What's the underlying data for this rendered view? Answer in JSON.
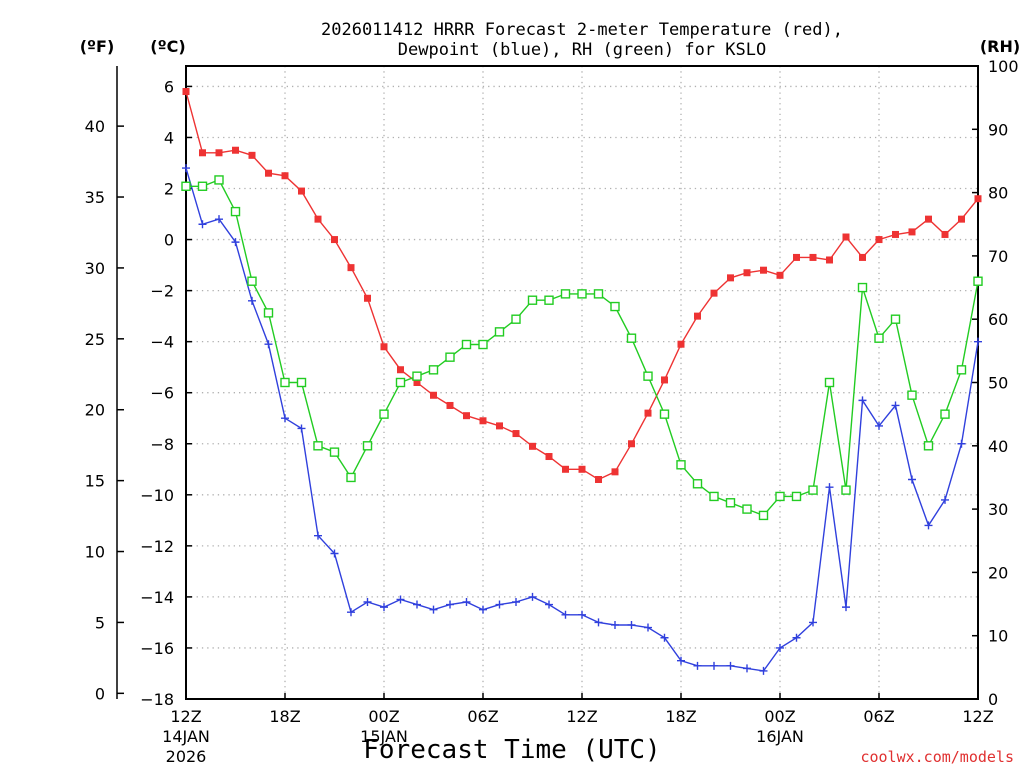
{
  "title_line1": "2026011412 HRRR Forecast 2-meter Temperature (red),",
  "title_line2": "Dewpoint (blue), RH (green) for KSLO",
  "unit_f": "(ºF)",
  "unit_c": "(ºC)",
  "unit_rh": "(RH)",
  "xlabel": "Forecast Time (UTC)",
  "credit": "coolwx.com/models",
  "date_labels": [
    {
      "tick": 0,
      "lines": [
        "14JAN",
        "2026"
      ]
    },
    {
      "tick": 2,
      "lines": [
        "15JAN"
      ]
    },
    {
      "tick": 6,
      "lines": [
        "16JAN"
      ]
    }
  ],
  "chart_data": {
    "type": "line",
    "x": [
      0,
      1,
      2,
      3,
      4,
      5,
      6,
      7,
      8,
      9,
      10,
      11,
      12,
      13,
      14,
      15,
      16,
      17,
      18,
      19,
      20,
      21,
      22,
      23,
      24,
      25,
      26,
      27,
      28,
      29,
      30,
      31,
      32,
      33,
      34,
      35,
      36,
      37,
      38,
      39,
      40,
      41,
      42,
      43,
      44,
      45,
      46,
      47,
      48
    ],
    "x_unit": "forecast hours from 2026-01-14 12Z",
    "xticks": [
      "12Z",
      "18Z",
      "00Z",
      "06Z",
      "12Z",
      "18Z",
      "00Z",
      "06Z",
      "12Z"
    ],
    "xlim": [
      0,
      48
    ],
    "series": [
      {
        "name": "Temperature",
        "color": "#ee3333",
        "marker": "filled-square",
        "values": [
          5.8,
          3.4,
          3.4,
          3.5,
          3.3,
          2.6,
          2.5,
          1.9,
          0.8,
          0.0,
          -1.1,
          -2.3,
          -4.2,
          -5.1,
          -5.6,
          -6.1,
          -6.5,
          -6.9,
          -7.1,
          -7.3,
          -7.6,
          -8.1,
          -8.5,
          -9.0,
          -9.0,
          -9.4,
          -9.1,
          -8.0,
          -6.8,
          -5.5,
          -4.1,
          -3.0,
          -2.1,
          -1.5,
          -1.3,
          -1.2,
          -1.4,
          -0.7,
          -0.7,
          -0.8,
          0.1,
          -0.7,
          0.0,
          0.2,
          0.3,
          0.8,
          0.2,
          0.8,
          1.6
        ]
      },
      {
        "name": "Dewpoint",
        "color": "#3040dd",
        "marker": "plus",
        "values": [
          2.8,
          0.6,
          0.8,
          -0.1,
          -2.4,
          -4.1,
          -7.0,
          -7.4,
          -11.6,
          -12.3,
          -14.6,
          -14.2,
          -14.4,
          -14.1,
          -14.3,
          -14.5,
          -14.3,
          -14.2,
          -14.5,
          -14.3,
          -14.2,
          -14.0,
          -14.3,
          -14.7,
          -14.7,
          -15.0,
          -15.1,
          -15.1,
          -15.2,
          -15.6,
          -16.5,
          -16.7,
          -16.7,
          -16.7,
          -16.8,
          -16.9,
          -16.0,
          -15.6,
          -15.0,
          -9.7,
          -14.4,
          -6.3,
          -7.3,
          -6.5,
          -9.4,
          -11.2,
          -10.2,
          -8.0,
          -4.0
        ]
      },
      {
        "name": "RH",
        "color": "#22cc22",
        "marker": "open-square",
        "axis": "right",
        "values": [
          81,
          81,
          82,
          77,
          66,
          61,
          50,
          50,
          40,
          39,
          35,
          40,
          45,
          50,
          51,
          52,
          54,
          56,
          56,
          58,
          60,
          63,
          63,
          64,
          64,
          64,
          62,
          57,
          51,
          45,
          37,
          34,
          32,
          31,
          30,
          29,
          32,
          32,
          33,
          50,
          33,
          65,
          57,
          60,
          48,
          40,
          45,
          52,
          66
        ]
      }
    ],
    "y_left_c": {
      "label": "(ºC)",
      "lim": [
        -18,
        6.8
      ],
      "ticks": [
        6,
        4,
        2,
        0,
        -2,
        -4,
        -6,
        -8,
        -10,
        -12,
        -14,
        -16,
        -18
      ]
    },
    "y_left_f": {
      "label": "(ºF)",
      "ticks": [
        40,
        35,
        30,
        25,
        20,
        15,
        10,
        5,
        0
      ]
    },
    "y_right": {
      "label": "(RH)",
      "lim": [
        0,
        100
      ],
      "ticks": [
        100,
        90,
        80,
        70,
        60,
        50,
        40,
        30,
        20,
        10,
        0
      ]
    },
    "grid": true
  }
}
